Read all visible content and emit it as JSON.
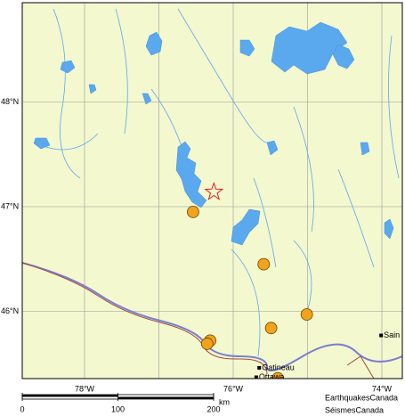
{
  "map": {
    "lat_labels": [
      {
        "value": 48,
        "label": "48°N"
      },
      {
        "value": 47,
        "label": "47°N"
      },
      {
        "value": 46,
        "label": "46°N"
      }
    ],
    "lon_labels": [
      {
        "value": -78,
        "label": "78°W"
      },
      {
        "value": -76,
        "label": "76°W"
      },
      {
        "value": -74,
        "label": "74°W"
      }
    ],
    "lon_grid": [
      -78,
      -77,
      -76,
      -75,
      -74
    ],
    "lat_grid": [
      48,
      47,
      46
    ],
    "epicentre": {
      "lon": -76.26,
      "lat": 47.14
    },
    "events": [
      {
        "lon": -76.54,
        "lat": 46.95
      },
      {
        "lon": -75.59,
        "lat": 46.45
      },
      {
        "lon": -75.01,
        "lat": 45.97
      },
      {
        "lon": -75.49,
        "lat": 45.84
      },
      {
        "lon": -76.31,
        "lat": 45.72
      },
      {
        "lon": -76.35,
        "lat": 45.69
      },
      {
        "lon": -75.4,
        "lat": 45.36
      }
    ],
    "cities": [
      {
        "name": "Gatineau",
        "lon": -75.65,
        "lat": 45.46
      },
      {
        "name": "Ottawa",
        "lon": -75.69,
        "lat": 45.37
      },
      {
        "name": "Sain",
        "lon": -74.01,
        "lat": 45.77
      }
    ],
    "scale_bar": {
      "ticks": [
        0,
        100,
        200
      ],
      "unit": "km"
    },
    "credit": [
      "EarthquakesCanada",
      "SéismesCanada"
    ]
  }
}
